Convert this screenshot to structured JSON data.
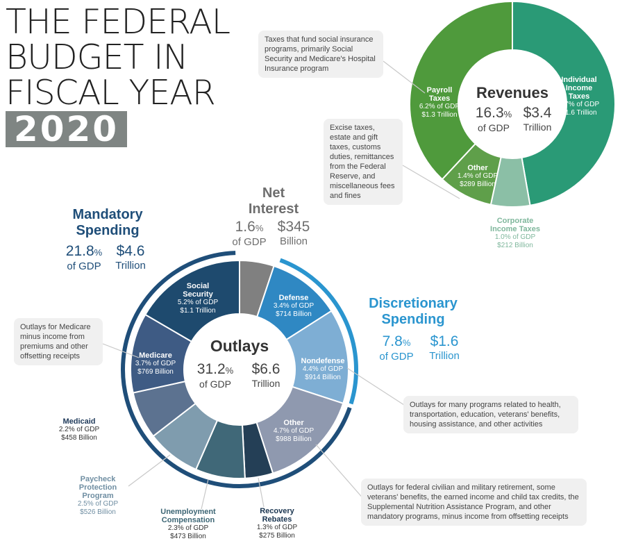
{
  "title": {
    "lines": [
      "THE FEDERAL",
      "BUDGET IN",
      "FISCAL YEAR"
    ],
    "year": "2020"
  },
  "colors": {
    "social_security": "#1e4a6e",
    "medicare": "#3e5b84",
    "medicaid": "#5c7290",
    "paycheck": "#7f9cae",
    "unemployment": "#406878",
    "recovery": "#243f56",
    "other_mand": "#8f99af",
    "nondefense": "#7eaed4",
    "defense": "#2f88c3",
    "net_interest": "#808080",
    "payroll": "#4f9a3c",
    "individual": "#2a9a76",
    "corporate": "#8bbfa6",
    "other_rev": "#5f9f4a",
    "mandatory_text": "#1f4e79",
    "discretionary_text": "#2a95cf",
    "revenue_text": "#2f7d4f"
  },
  "outlays": {
    "title": "Outlays",
    "gdp_pct": "31.2",
    "pct_sign": "%",
    "gdp_label": "of GDP",
    "amount": "$6.6",
    "amount_unit": "Trillion"
  },
  "revenues": {
    "title": "Revenues",
    "gdp_pct": "16.3",
    "pct_sign": "%",
    "gdp_label": "of GDP",
    "amount": "$3.4",
    "amount_unit": "Trillion"
  },
  "mandatory": {
    "title_line1": "Mandatory",
    "title_line2": "Spending",
    "gdp_pct": "21.8",
    "pct_sign": "%",
    "gdp_label": "of GDP",
    "amount": "$4.6",
    "amount_unit": "Trillion"
  },
  "discretionary": {
    "title_line1": "Discretionary",
    "title_line2": "Spending",
    "gdp_pct": "7.8",
    "pct_sign": "%",
    "gdp_label": "of GDP",
    "amount": "$1.6",
    "amount_unit": "Trillion"
  },
  "net_interest": {
    "title_line1": "Net",
    "title_line2": "Interest",
    "gdp_pct": "1.6",
    "pct_sign": "%",
    "gdp_label": "of GDP",
    "amount": "$345",
    "amount_unit": "Billion"
  },
  "callouts": {
    "payroll": "Taxes that fund social insurance programs, primarily Social Security and Medicare's Hospital Insurance program",
    "other_rev": "Excise taxes, estate and gift taxes, customs duties, remittances from the Federal Reserve, and miscellaneous fees and fines",
    "medicare": "Outlays for Medicare minus income from premiums and other offsetting receipts",
    "nondefense": "Outlays for many programs related to health, transportation, education, veterans' benefits, housing assistance, and other activities",
    "other_mand": "Outlays for federal civilian and military retirement, some veterans' benefits, the earned income and child tax credits, the Supplemental Nutrition Assistance Program, and other mandatory programs, minus income from offsetting receipts"
  },
  "chart_data": [
    {
      "type": "pie",
      "title": "Outlays",
      "categories": [
        "Net Interest",
        "Defense",
        "Nondefense",
        "Other",
        "Recovery Rebates",
        "Unemployment Compensation",
        "Paycheck Protection Program",
        "Medicaid",
        "Medicare",
        "Social Security"
      ],
      "values": [
        345,
        714,
        914,
        988,
        275,
        473,
        526,
        458,
        769,
        1100
      ],
      "gdp_pct": [
        1.6,
        3.4,
        4.4,
        4.7,
        1.3,
        2.3,
        2.5,
        2.2,
        3.7,
        5.2
      ],
      "segments": [
        {
          "name_lines": [
            "Social",
            "Security"
          ],
          "gdp": "5.2% of GDP",
          "amount": "$1.1 Trillion"
        },
        {
          "name_lines": [
            "Defense"
          ],
          "gdp": "3.4% of GDP",
          "amount": "$714 Billion"
        },
        {
          "name_lines": [
            "Nondefense"
          ],
          "gdp": "4.4% of GDP",
          "amount": "$914 Billion"
        },
        {
          "name_lines": [
            "Other"
          ],
          "gdp": "4.7% of GDP",
          "amount": "$988 Billion"
        },
        {
          "name_lines": [
            "Recovery",
            "Rebates"
          ],
          "gdp": "1.3% of GDP",
          "amount": "$275 Billion"
        },
        {
          "name_lines": [
            "Unemployment",
            "Compensation"
          ],
          "gdp": "2.3% of GDP",
          "amount": "$473 Billion"
        },
        {
          "name_lines": [
            "Paycheck",
            "Protection",
            "Program"
          ],
          "gdp": "2.5% of GDP",
          "amount": "$526 Billion"
        },
        {
          "name_lines": [
            "Medicaid"
          ],
          "gdp": "2.2% of GDP",
          "amount": "$458 Billion"
        },
        {
          "name_lines": [
            "Medicare"
          ],
          "gdp": "3.7% of GDP",
          "amount": "$769 Billion"
        }
      ]
    },
    {
      "type": "pie",
      "title": "Revenues",
      "categories": [
        "Individual Income Taxes",
        "Corporate Income Taxes",
        "Other",
        "Payroll Taxes"
      ],
      "values": [
        1600,
        212,
        289,
        1300
      ],
      "gdp_pct": [
        7.7,
        1.0,
        1.4,
        6.2
      ],
      "segments": [
        {
          "name_lines": [
            "Individual",
            "Income",
            "Taxes"
          ],
          "gdp": "7.7% of GDP",
          "amount": "$1.6 Trillion"
        },
        {
          "name_lines": [
            "Corporate",
            "Income Taxes"
          ],
          "gdp": "1.0% of GDP",
          "amount": "$212 Billion"
        },
        {
          "name_lines": [
            "Other"
          ],
          "gdp": "1.4% of GDP",
          "amount": "$289 Billion"
        },
        {
          "name_lines": [
            "Payroll",
            "Taxes"
          ],
          "gdp": "6.2% of GDP",
          "amount": "$1.3 Trillion"
        }
      ]
    }
  ]
}
